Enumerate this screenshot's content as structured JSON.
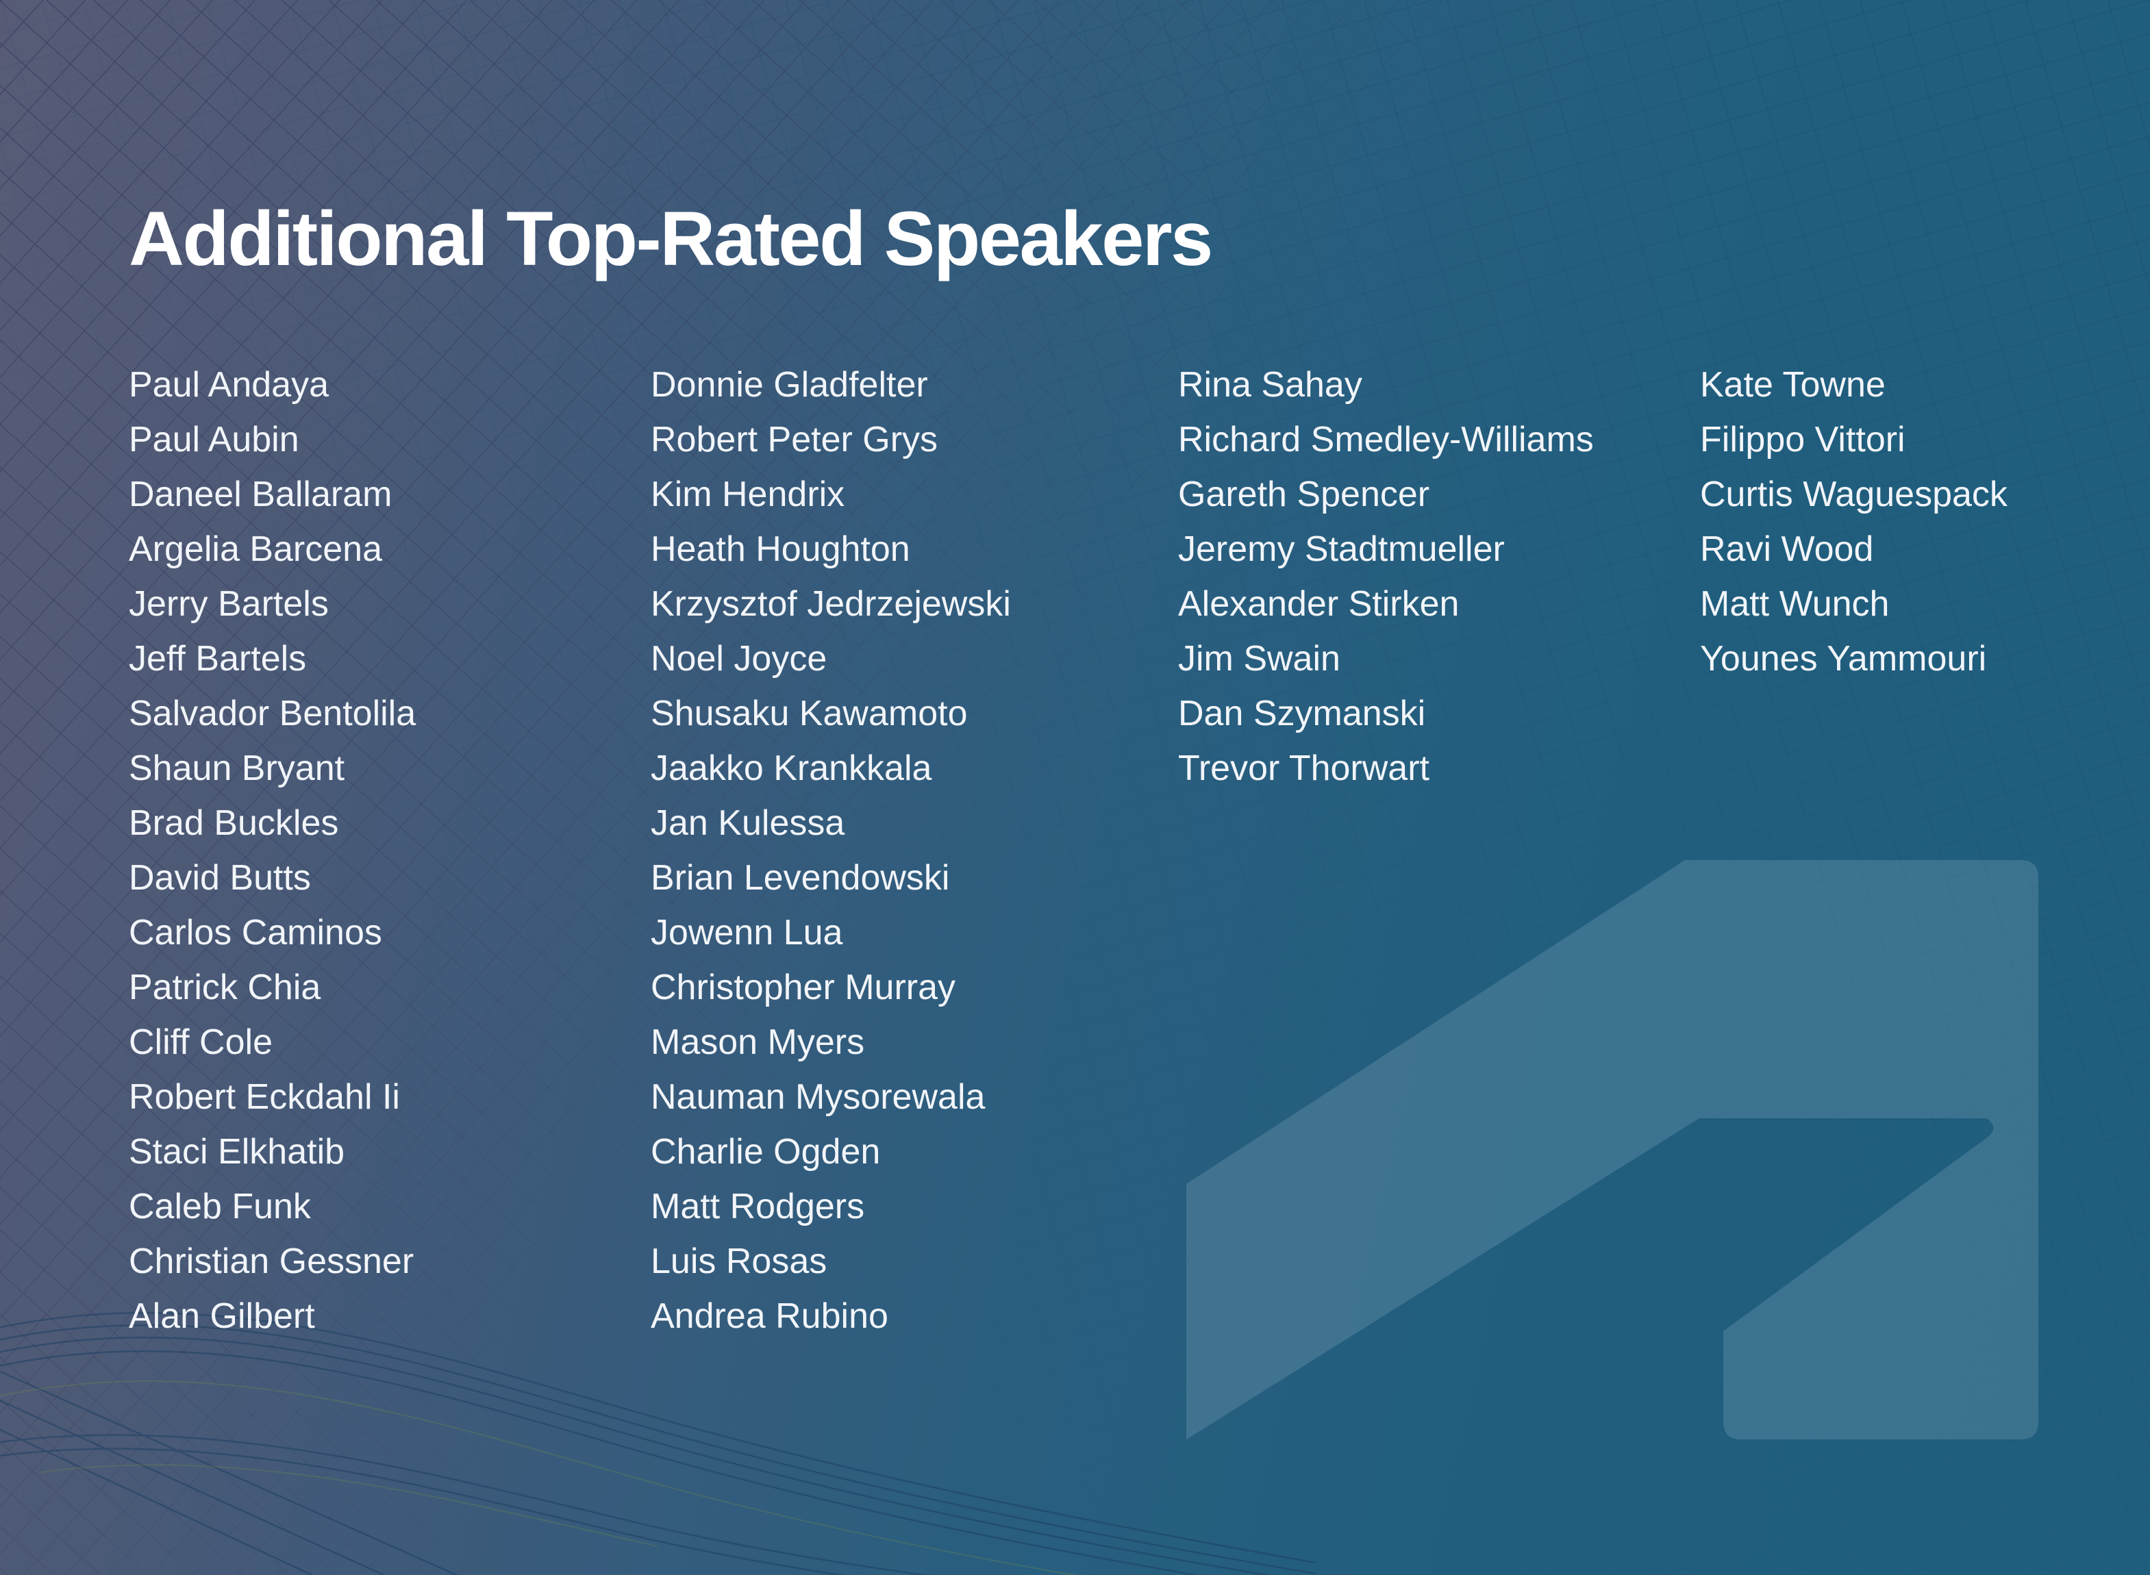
{
  "title": "Additional Top-Rated Speakers",
  "speakers": {
    "column1": [
      "Paul Andaya",
      "Paul Aubin",
      "Daneel Ballaram",
      "Argelia Barcena",
      "Jerry Bartels",
      "Jeff Bartels",
      "Salvador Bentolila",
      "Shaun Bryant",
      "Brad Buckles",
      "David Butts",
      "Carlos Caminos",
      "Patrick Chia",
      "Cliff Cole",
      "Robert Eckdahl Ii",
      "Staci Elkhatib",
      "Caleb Funk",
      "Christian Gessner",
      "Alan Gilbert"
    ],
    "column2": [
      "Donnie Gladfelter",
      "Robert Peter Grys",
      "Kim Hendrix",
      "Heath Houghton",
      "Krzysztof Jedrzejewski",
      "Noel Joyce",
      "Shusaku Kawamoto",
      "Jaakko Krankkala",
      "Jan Kulessa",
      "Brian Levendowski",
      "Jowenn Lua",
      "Christopher Murray",
      "Mason Myers",
      "Nauman Mysorewala",
      "Charlie Ogden",
      "Matt Rodgers",
      "Luis Rosas",
      "Andrea Rubino"
    ],
    "column3": [
      "Rina Sahay",
      "Richard Smedley-Williams",
      "Gareth Spencer",
      "Jeremy Stadtmueller",
      "Alexander Stirken",
      "Jim Swain",
      "Dan Szymanski",
      "Trevor Thorwart"
    ],
    "column4": [
      "Kate Towne",
      "Filippo Vittori",
      "Curtis Waguespack",
      "Ravi Wood",
      "Matt Wunch",
      "Younes Yammouri"
    ]
  },
  "watermark_icon": "autodesk-logo",
  "colors": {
    "background_top_left": "#575b76",
    "background_right": "#205e7d",
    "title_text": "#ffffff",
    "name_text": "#f2f5f9",
    "mesh_line_slate": "#32355a",
    "mesh_line_teal": "#174a69",
    "mesh_accent_green": "#7e9a3a",
    "watermark_fill": "#cfe4f2"
  }
}
